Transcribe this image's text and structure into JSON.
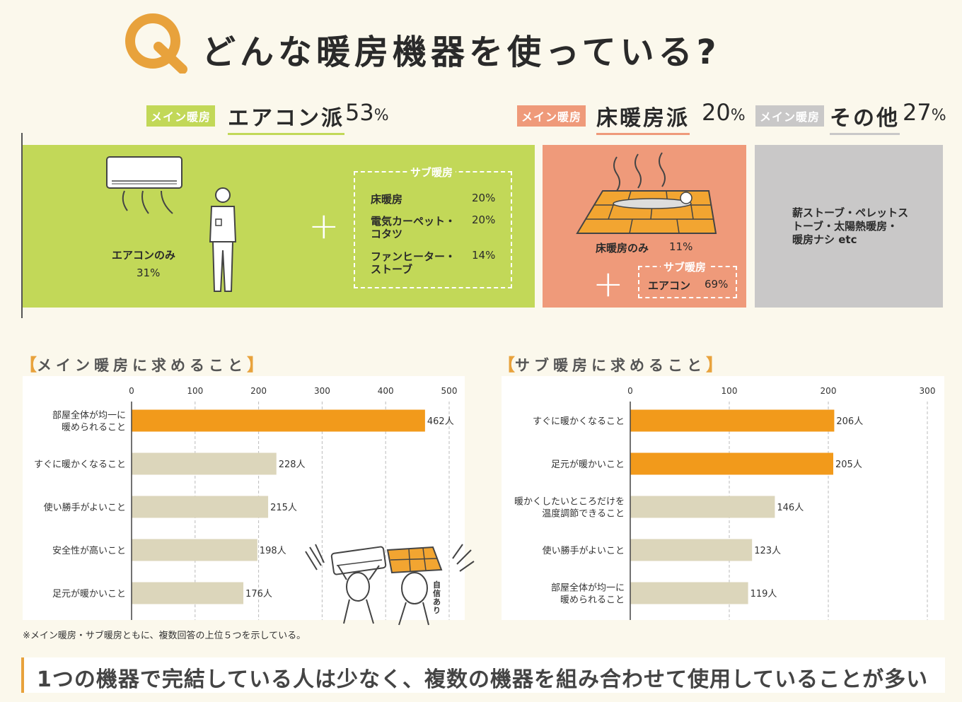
{
  "header": {
    "q_letter": "Q",
    "title": "どんな暖房機器を使っている?"
  },
  "colors": {
    "green": "#c2d858",
    "salmon": "#ef9a7a",
    "gray": "#c9c8c8",
    "orange": "#f29a1b",
    "beige_bar": "#dcd6bb"
  },
  "categories": {
    "aircon": {
      "tag": "メイン暖房",
      "name": "エアコン派",
      "pct": "53",
      "unit": "%"
    },
    "floor": {
      "tag": "メイン暖房",
      "name": "床暖房派",
      "pct": "20",
      "unit": "%"
    },
    "other": {
      "tag": "メイン暖房",
      "name": "その他",
      "pct": "27",
      "unit": "%"
    }
  },
  "panels": {
    "aircon": {
      "only_label": "エアコンのみ",
      "only_pct": "31%",
      "sub_label": "サブ暖房",
      "sub_items": [
        {
          "name": "床暖房",
          "pct": "20%"
        },
        {
          "name": "電気カーペット・",
          "name2": "コタツ",
          "pct": "20%"
        },
        {
          "name": "ファンヒーター・",
          "name2": "ストーブ",
          "pct": "14%"
        }
      ]
    },
    "floor": {
      "only_label": "床暖房のみ",
      "only_pct": "11%",
      "sub_label": "サブ暖房",
      "sub_item": "エアコン",
      "sub_pct": "69%"
    },
    "other": {
      "lines": [
        "薪ストーブ・ペレットス",
        "トーブ・太陽熱暖房・",
        "暖房ナシ etc"
      ]
    },
    "plus": "+"
  },
  "sections": {
    "main": {
      "open": "【",
      "title": "メイン暖房に求めること",
      "close": "】"
    },
    "sub": {
      "open": "【",
      "title": "サブ暖房に求めること",
      "close": "】"
    }
  },
  "chart_data": [
    {
      "type": "bar",
      "orientation": "horizontal",
      "title": "メイン暖房に求めること",
      "categories": [
        [
          "部屋全体が均一に",
          "暖められること"
        ],
        [
          "すぐに暖かくなること"
        ],
        [
          "使い勝手がよいこと"
        ],
        [
          "安全性が高いこと"
        ],
        [
          "足元が暖かいこと"
        ]
      ],
      "values": [
        462,
        228,
        215,
        198,
        176
      ],
      "value_labels": [
        "462人",
        "228人",
        "215人",
        "198人",
        "176人"
      ],
      "highlight": [
        true,
        false,
        false,
        false,
        false
      ],
      "xlim": [
        0,
        500
      ],
      "ticks": [
        0,
        100,
        200,
        300,
        400,
        500
      ],
      "unit": "人"
    },
    {
      "type": "bar",
      "orientation": "horizontal",
      "title": "サブ暖房に求めること",
      "categories": [
        [
          "すぐに暖かくなること"
        ],
        [
          "足元が暖かいこと"
        ],
        [
          "暖かくしたいところだけを",
          "温度調節できること"
        ],
        [
          "使い勝手がよいこと"
        ],
        [
          "部屋全体が均一に",
          "暖められること"
        ]
      ],
      "values": [
        206,
        205,
        146,
        123,
        119
      ],
      "value_labels": [
        "206人",
        "205人",
        "146人",
        "123人",
        "119人"
      ],
      "highlight": [
        true,
        true,
        false,
        false,
        false
      ],
      "xlim": [
        0,
        300
      ],
      "ticks": [
        0,
        100,
        200,
        300
      ],
      "unit": "人"
    }
  ],
  "illustration": {
    "sign_text": "自信あり"
  },
  "footer": {
    "note": "※メイン暖房・サブ暖房ともに、複数回答の上位５つを示している。",
    "conclusion": "1つの機器で完結している人は少なく、複数の機器を組み合わせて使用していることが多い"
  }
}
